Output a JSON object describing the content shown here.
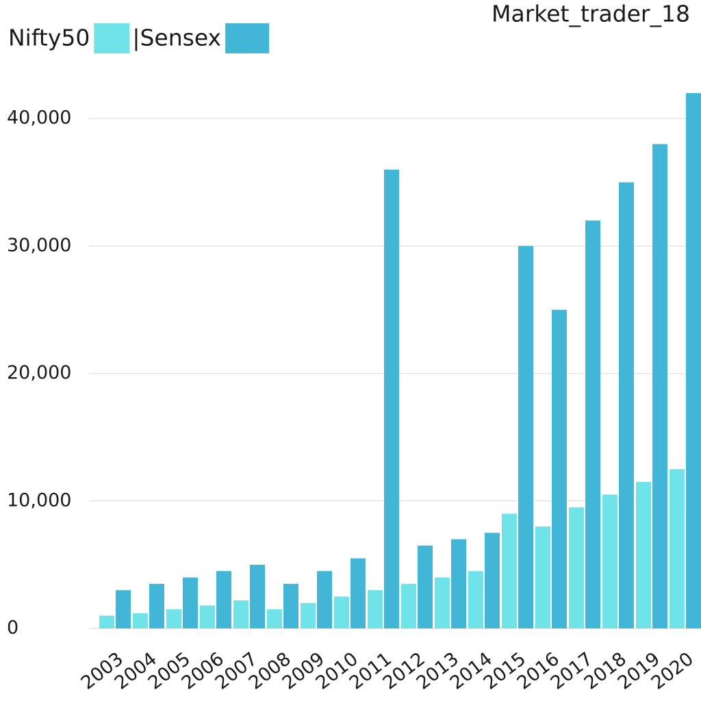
{
  "chart_data": {
    "type": "bar",
    "title": "Market_trader_18",
    "categories": [
      "2003",
      "2004",
      "2005",
      "2006",
      "2007",
      "2008",
      "2009",
      "2010",
      "2011",
      "2012",
      "2013",
      "2014",
      "2015",
      "2016",
      "2017",
      "2018",
      "2019",
      "2020"
    ],
    "series": [
      {
        "name": "Nifty50",
        "color": "#6fe3e8",
        "values": [
          1000,
          1200,
          1500,
          1800,
          2200,
          1500,
          2000,
          2500,
          3000,
          3500,
          4000,
          4500,
          9000,
          8000,
          9500,
          10500,
          11500,
          12500
        ]
      },
      {
        "name": "|Sensex",
        "color": "#41b6d6",
        "values": [
          3000,
          3500,
          4000,
          4500,
          5000,
          3500,
          4500,
          5500,
          36000,
          6500,
          7000,
          7500,
          30000,
          25000,
          32000,
          35000,
          38000,
          42000
        ]
      }
    ],
    "ylim": [
      0,
      42000
    ],
    "yticks": [
      {
        "value": 0,
        "label": "0"
      },
      {
        "value": 10000,
        "label": "10,000"
      },
      {
        "value": 20000,
        "label": "20,000"
      },
      {
        "value": 30000,
        "label": "30,000"
      },
      {
        "value": 40000,
        "label": "40,000"
      }
    ],
    "grid": true
  }
}
